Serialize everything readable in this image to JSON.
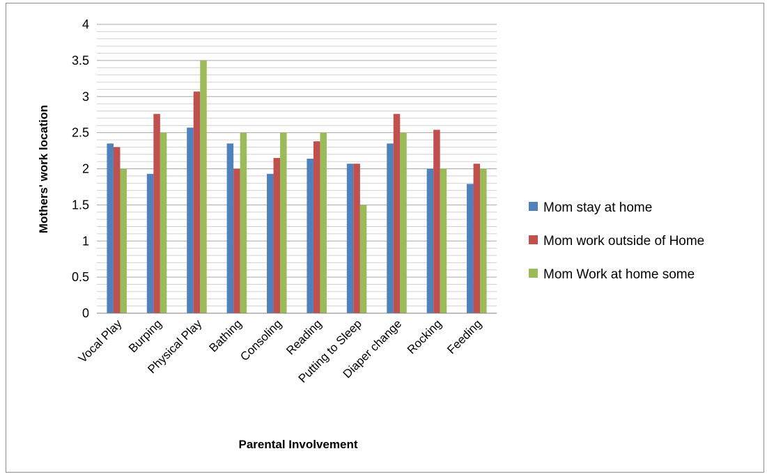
{
  "chart_data": {
    "type": "bar",
    "title": "",
    "xlabel": "Parental Involvement",
    "ylabel": "Mothers' work location",
    "ylim": [
      0,
      4
    ],
    "yticks": [
      "0",
      "0.5",
      "1",
      "1.5",
      "2",
      "2.5",
      "3",
      "3.5",
      "4"
    ],
    "grid": true,
    "legend_position": "right",
    "categories": [
      "Vocal Play",
      "Burping",
      "Physical Play",
      "Bathing",
      "Consoling",
      "Reading",
      "Putting to Sleep",
      "Diaper change",
      "Rocking",
      "Feeding"
    ],
    "series": [
      {
        "name": "Mom stay at home",
        "color": "#4f81bd",
        "values": [
          2.35,
          1.93,
          2.57,
          2.35,
          1.93,
          2.14,
          2.07,
          2.35,
          2.0,
          1.79
        ]
      },
      {
        "name": "Mom work outside of Home",
        "color": "#c0504d",
        "values": [
          2.3,
          2.76,
          3.07,
          2.0,
          2.15,
          2.38,
          2.07,
          2.76,
          2.54,
          2.07
        ]
      },
      {
        "name": "Mom Work at home some",
        "color": "#9bbb59",
        "values": [
          2.0,
          2.5,
          3.5,
          2.5,
          2.5,
          2.5,
          1.5,
          2.5,
          2.0,
          2.0
        ]
      }
    ]
  }
}
